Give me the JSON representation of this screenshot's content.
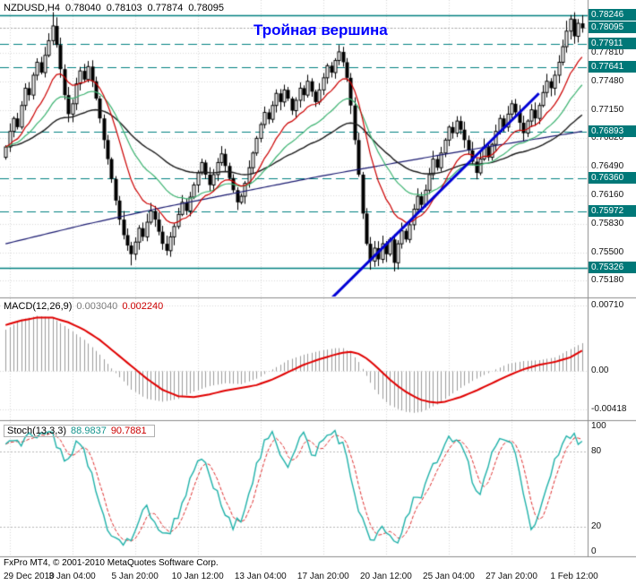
{
  "header": {
    "symbol": "NZDUSD,H4",
    "open": "0.78040",
    "high": "0.78103",
    "low": "0.77874",
    "close": "0.78095"
  },
  "footer": {
    "copyright": "FxPro MT4, © 2001-2010 MetaQuotes Software Corp."
  },
  "colors": {
    "background": "#FFFFFF",
    "grid": "#D9D9D9",
    "level_teal": "#008080",
    "badge_bg": "#007878",
    "badge_text": "#FFFFFF",
    "candle": "#000000",
    "ma_fast": "#CC0000",
    "ma_mid": "#3CB371",
    "ma_slow": "#1A1A1A",
    "ma_long": "#191970",
    "trendline": "#0000D6",
    "macd_hist": "#9C9C9C",
    "macd_signal": "#E00000",
    "stoch_main": "#20B2AA",
    "stoch_signal": "#E03030",
    "divider": "#8C8C8C",
    "annotation_color": "#0000FF"
  },
  "chart_data": {
    "type": "candlestick",
    "symbol": "NZDUSD",
    "timeframe": "H4",
    "title": "NZDUSD,H4 0.78040 0.78103 0.77874 0.78095",
    "annotation": "Тройная вершина",
    "price_axis": {
      "min": 0.7499,
      "max": 0.7842,
      "ticks": [
        "0.78100",
        "0.77810",
        "0.77480",
        "0.77150",
        "0.76820",
        "0.76490",
        "0.76160",
        "0.75830",
        "0.75500",
        "0.75180"
      ]
    },
    "levels": [
      {
        "price": 0.78246,
        "style": "solid"
      },
      {
        "price": 0.77911,
        "style": "dash"
      },
      {
        "price": 0.77641,
        "style": "dash"
      },
      {
        "price": 0.76893,
        "style": "dash"
      },
      {
        "price": 0.7636,
        "style": "dash"
      },
      {
        "price": 0.75972,
        "style": "dash"
      },
      {
        "price": 0.75326,
        "style": "solid"
      }
    ],
    "bid": 0.78095,
    "time_labels": [
      [
        1,
        "29 Dec 2010"
      ],
      [
        17,
        "3 Jan 04:00"
      ],
      [
        33,
        "5 Jan 20:00"
      ],
      [
        49,
        "10 Jan 12:00"
      ],
      [
        65,
        "13 Jan 04:00"
      ],
      [
        81,
        "17 Jan 20:00"
      ],
      [
        97,
        "20 Jan 12:00"
      ],
      [
        113,
        "25 Jan 04:00"
      ],
      [
        129,
        "27 Jan 20:00"
      ],
      [
        145,
        "1 Feb 12:00"
      ]
    ],
    "candles": {
      "first_open": 0.766,
      "closes": [
        0.7672,
        0.769,
        0.7705,
        0.7695,
        0.772,
        0.774,
        0.7732,
        0.7755,
        0.777,
        0.7758,
        0.7778,
        0.7795,
        0.7812,
        0.779,
        0.7762,
        0.7732,
        0.771,
        0.7722,
        0.7745,
        0.776,
        0.775,
        0.7765,
        0.7748,
        0.7728,
        0.7705,
        0.768,
        0.7658,
        0.7635,
        0.761,
        0.7588,
        0.757,
        0.7558,
        0.7548,
        0.7562,
        0.7578,
        0.7568,
        0.7585,
        0.7598,
        0.7588,
        0.7574,
        0.756,
        0.7552,
        0.7568,
        0.758,
        0.7594,
        0.7608,
        0.7598,
        0.7614,
        0.7628,
        0.7642,
        0.7654,
        0.764,
        0.7628,
        0.764,
        0.7654,
        0.7664,
        0.765,
        0.7636,
        0.7622,
        0.7608,
        0.7615,
        0.763,
        0.7648,
        0.7665,
        0.7682,
        0.7698,
        0.7712,
        0.7704,
        0.772,
        0.7734,
        0.7724,
        0.7738,
        0.7728,
        0.7714,
        0.7726,
        0.774,
        0.7732,
        0.7748,
        0.7736,
        0.7724,
        0.7738,
        0.7752,
        0.7766,
        0.7758,
        0.7772,
        0.7782,
        0.777,
        0.7752,
        0.772,
        0.768,
        0.764,
        0.7595,
        0.756,
        0.754,
        0.7555,
        0.7542,
        0.756,
        0.7548,
        0.7565,
        0.7538,
        0.756,
        0.7575,
        0.7565,
        0.7582,
        0.76,
        0.7615,
        0.7605,
        0.7622,
        0.764,
        0.7658,
        0.7648,
        0.7665,
        0.768,
        0.7695,
        0.7688,
        0.7702,
        0.7692,
        0.768,
        0.7668,
        0.7655,
        0.7642,
        0.7658,
        0.7672,
        0.766,
        0.7675,
        0.769,
        0.7705,
        0.7695,
        0.771,
        0.7722,
        0.7712,
        0.77,
        0.7688,
        0.7702,
        0.7715,
        0.7705,
        0.772,
        0.7735,
        0.7748,
        0.774,
        0.7755,
        0.777,
        0.7788,
        0.7806,
        0.782,
        0.78,
        0.7815,
        0.78095
      ],
      "high_overrides": {
        "12": 0.7828,
        "85": 0.779,
        "143": 0.7818,
        "144": 0.78246,
        "146": 0.782
      },
      "low_overrides": {
        "32": 0.7535,
        "93": 0.753,
        "99": 0.7528
      }
    },
    "moving_averages": {
      "fast_period": 13,
      "mid_period": 26,
      "slow_period": 55
    },
    "long_ma_points": [
      [
        0,
        0.756
      ],
      [
        20,
        0.7582
      ],
      [
        40,
        0.7602
      ],
      [
        60,
        0.762
      ],
      [
        80,
        0.7638
      ],
      [
        100,
        0.7654
      ],
      [
        120,
        0.767
      ],
      [
        147,
        0.769
      ]
    ],
    "trendline": {
      "from": [
        78,
        0.7474
      ],
      "to": [
        136,
        0.7734
      ]
    },
    "macd": {
      "label": "MACD(12,26,9)",
      "values": [
        "0.003040",
        "0.002240"
      ],
      "axis": {
        "min": -0.0052,
        "max": 0.0078,
        "ticks": [
          {
            "v": 0.0071,
            "t": "0.00710"
          },
          {
            "v": 0,
            "t": "0.00"
          },
          {
            "v": -0.00418,
            "t": "-0.00418"
          }
        ]
      },
      "points": [
        [
          0,
          0.0045,
          0.005
        ],
        [
          4,
          0.0056,
          0.0055
        ],
        [
          8,
          0.006,
          0.0058
        ],
        [
          12,
          0.0058,
          0.0058
        ],
        [
          16,
          0.0046,
          0.0053
        ],
        [
          20,
          0.0034,
          0.0045
        ],
        [
          24,
          0.0018,
          0.0034
        ],
        [
          28,
          -0.0002,
          0.002
        ],
        [
          32,
          -0.002,
          0.0006
        ],
        [
          36,
          -0.003,
          -0.0008
        ],
        [
          40,
          -0.0033,
          -0.002
        ],
        [
          44,
          -0.003,
          -0.0027
        ],
        [
          48,
          -0.0022,
          -0.0028
        ],
        [
          52,
          -0.0016,
          -0.0025
        ],
        [
          56,
          -0.0013,
          -0.0021
        ],
        [
          60,
          -0.0014,
          -0.0018
        ],
        [
          64,
          -0.0008,
          -0.0015
        ],
        [
          68,
          0.0002,
          -0.0009
        ],
        [
          72,
          0.0012,
          -0.0001
        ],
        [
          76,
          0.0018,
          0.0007
        ],
        [
          80,
          0.0022,
          0.0013
        ],
        [
          84,
          0.0025,
          0.0018
        ],
        [
          86,
          0.0025,
          0.002
        ],
        [
          88,
          0.002,
          0.0021
        ],
        [
          90,
          0.001,
          0.0019
        ],
        [
          92,
          -0.0005,
          0.0014
        ],
        [
          94,
          -0.002,
          0.0007
        ],
        [
          96,
          -0.003,
          -0.0001
        ],
        [
          98,
          -0.0037,
          -0.0009
        ],
        [
          100,
          -0.0041,
          -0.0016
        ],
        [
          102,
          -0.0044,
          -0.0022
        ],
        [
          104,
          -0.0045,
          -0.0027
        ],
        [
          106,
          -0.0044,
          -0.0031
        ],
        [
          108,
          -0.004,
          -0.0033
        ],
        [
          110,
          -0.0036,
          -0.0034
        ],
        [
          112,
          -0.003,
          -0.0033
        ],
        [
          116,
          -0.0018,
          -0.0028
        ],
        [
          120,
          -0.0008,
          -0.0021
        ],
        [
          124,
          0.0,
          -0.0013
        ],
        [
          128,
          0.0008,
          -0.0005
        ],
        [
          132,
          0.0011,
          0.0002
        ],
        [
          136,
          0.0012,
          0.0007
        ],
        [
          140,
          0.0015,
          0.001
        ],
        [
          144,
          0.0024,
          0.0015
        ],
        [
          147,
          0.00304,
          0.00224
        ]
      ]
    },
    "stoch": {
      "label": "Stoch(13,3,3)",
      "values": [
        "88.9837",
        "90.7881"
      ],
      "levels": [
        20,
        80
      ],
      "axis_ticks": [
        {
          "v": 100,
          "t": "100"
        },
        {
          "v": 80,
          "t": "80"
        },
        {
          "v": 20,
          "t": "20"
        },
        {
          "v": 0,
          "t": "0"
        }
      ],
      "k_points": [
        [
          0,
          82
        ],
        [
          2,
          90
        ],
        [
          4,
          86
        ],
        [
          6,
          93
        ],
        [
          8,
          88
        ],
        [
          10,
          95
        ],
        [
          12,
          92
        ],
        [
          14,
          78
        ],
        [
          16,
          70
        ],
        [
          18,
          85
        ],
        [
          20,
          80
        ],
        [
          22,
          60
        ],
        [
          24,
          38
        ],
        [
          26,
          20
        ],
        [
          28,
          10
        ],
        [
          30,
          6
        ],
        [
          32,
          10
        ],
        [
          34,
          25
        ],
        [
          36,
          35
        ],
        [
          38,
          25
        ],
        [
          40,
          12
        ],
        [
          42,
          18
        ],
        [
          44,
          30
        ],
        [
          46,
          48
        ],
        [
          48,
          62
        ],
        [
          50,
          75
        ],
        [
          52,
          60
        ],
        [
          54,
          45
        ],
        [
          56,
          30
        ],
        [
          58,
          18
        ],
        [
          60,
          28
        ],
        [
          62,
          48
        ],
        [
          64,
          68
        ],
        [
          66,
          85
        ],
        [
          68,
          93
        ],
        [
          70,
          80
        ],
        [
          72,
          70
        ],
        [
          74,
          85
        ],
        [
          76,
          95
        ],
        [
          78,
          75
        ],
        [
          80,
          85
        ],
        [
          82,
          92
        ],
        [
          84,
          96
        ],
        [
          86,
          85
        ],
        [
          88,
          60
        ],
        [
          90,
          35
        ],
        [
          92,
          15
        ],
        [
          94,
          8
        ],
        [
          96,
          18
        ],
        [
          98,
          12
        ],
        [
          100,
          8
        ],
        [
          102,
          25
        ],
        [
          104,
          45
        ],
        [
          106,
          40
        ],
        [
          108,
          60
        ],
        [
          110,
          75
        ],
        [
          112,
          88
        ],
        [
          114,
          92
        ],
        [
          116,
          85
        ],
        [
          118,
          70
        ],
        [
          120,
          45
        ],
        [
          122,
          55
        ],
        [
          124,
          75
        ],
        [
          126,
          88
        ],
        [
          128,
          92
        ],
        [
          130,
          78
        ],
        [
          132,
          45
        ],
        [
          134,
          18
        ],
        [
          136,
          30
        ],
        [
          138,
          55
        ],
        [
          140,
          70
        ],
        [
          142,
          85
        ],
        [
          144,
          92
        ],
        [
          146,
          90
        ],
        [
          147,
          88.98
        ]
      ]
    }
  }
}
